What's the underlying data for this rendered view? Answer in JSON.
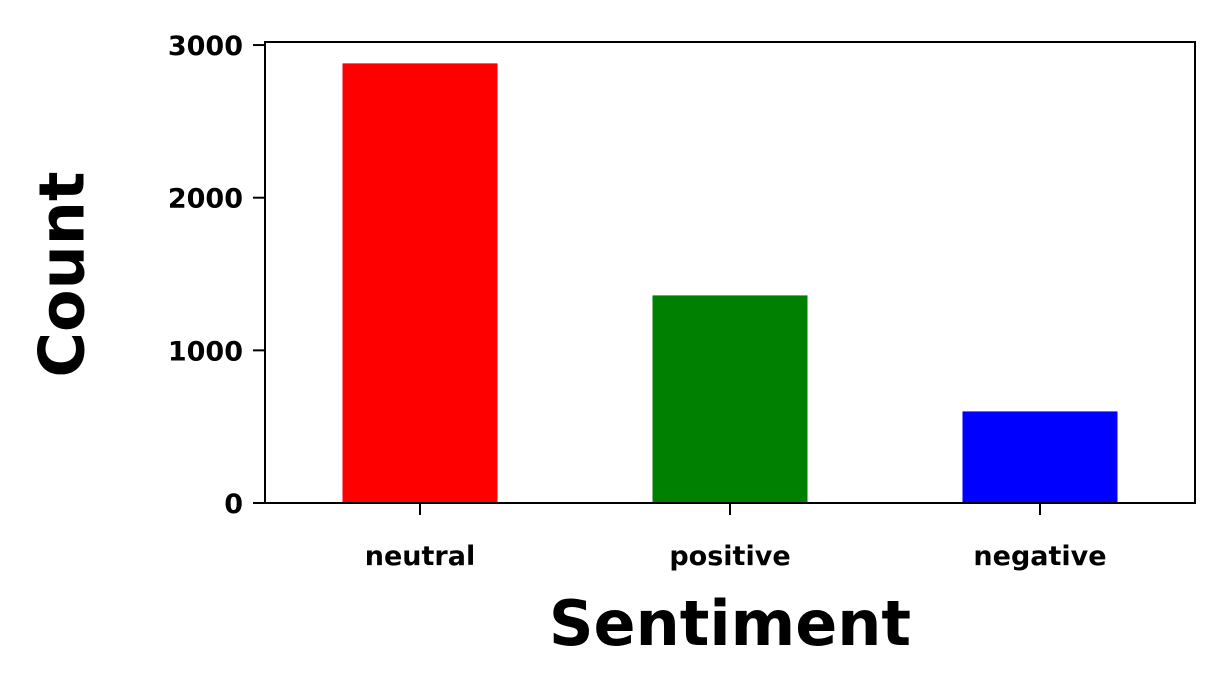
{
  "chart_data": {
    "type": "bar",
    "title": "",
    "xlabel": "Sentiment",
    "ylabel": "Count",
    "categories": [
      "neutral",
      "positive",
      "negative"
    ],
    "values": [
      2880,
      1360,
      600
    ],
    "colors": [
      "#ff0000",
      "#008000",
      "#0000ff"
    ],
    "ylim": [
      0,
      3020
    ],
    "yticks": [
      0,
      1000,
      2000,
      3000
    ],
    "grid": false,
    "legend": "none"
  }
}
